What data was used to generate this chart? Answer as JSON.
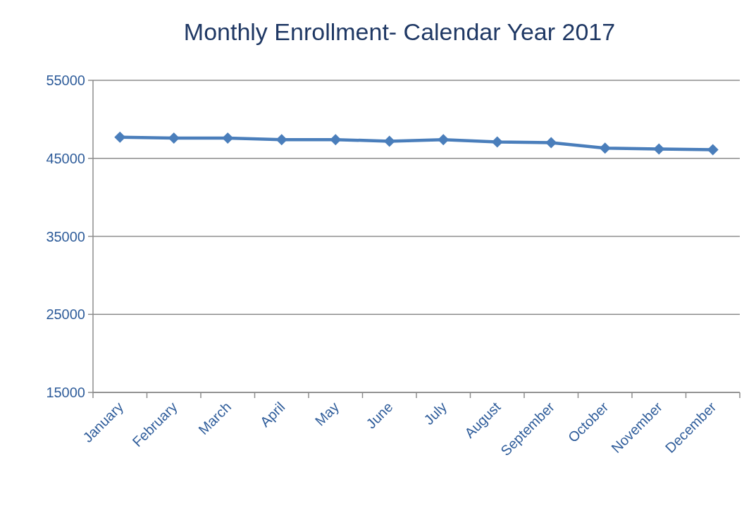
{
  "chart_data": {
    "type": "line",
    "title": "Monthly Enrollment- Calendar Year 2017",
    "categories": [
      "January",
      "February",
      "March",
      "April",
      "May",
      "June",
      "July",
      "August",
      "September",
      "October",
      "November",
      "December"
    ],
    "series": [
      {
        "color": "#4a7ebb",
        "values": [
          47700,
          47600,
          47600,
          47400,
          47400,
          47200,
          47400,
          47100,
          47000,
          46300,
          46200,
          46100
        ]
      }
    ],
    "ylim": [
      15000,
      55000
    ],
    "yticks": [
      15000,
      25000,
      35000,
      45000,
      55000
    ],
    "grid": "y",
    "marker": "diamond",
    "line_style": "solid"
  }
}
